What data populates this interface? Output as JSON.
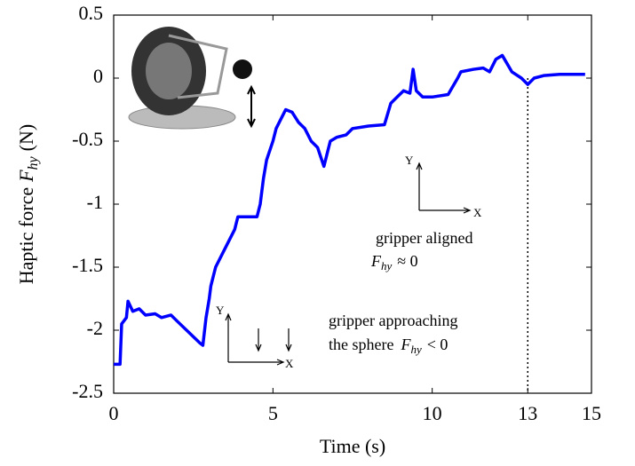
{
  "chart_data": {
    "type": "line",
    "xlabel": "Time (s)",
    "ylabel": {
      "text": "Haptic force",
      "symbol": "F",
      "subscript": "hy",
      "unit": "(N)"
    },
    "annotations": [
      {
        "line1": "gripper aligned",
        "symbol": "F",
        "subscript": "hy",
        "relation": "≈ 0"
      },
      {
        "line1": "gripper approaching",
        "line2": "the sphere",
        "symbol": "F",
        "subscript": "hy",
        "relation": "< 0"
      }
    ],
    "axis_labels": {
      "y": "Y",
      "x": "X"
    },
    "color": "#0000ff",
    "x": [
      0,
      0.2,
      0.25,
      0.4,
      0.45,
      0.6,
      0.8,
      1.0,
      1.3,
      1.5,
      1.8,
      2.0,
      2.7,
      2.8,
      2.9,
      3.0,
      3.05,
      3.1,
      3.2,
      3.5,
      3.8,
      3.9,
      4.5,
      4.6,
      4.7,
      4.8,
      5.0,
      5.1,
      5.3,
      5.4,
      5.6,
      5.8,
      6.0,
      6.2,
      6.4,
      6.6,
      6.7,
      6.8,
      7.0,
      7.3,
      7.5,
      8.0,
      8.5,
      8.7,
      8.9,
      9.1,
      9.3,
      9.4,
      9.5,
      9.7,
      10.0,
      10.5,
      10.8,
      10.9,
      11.3,
      11.6,
      11.8,
      12.0,
      12.2,
      12.5,
      12.8,
      13.0,
      13.2,
      13.5,
      14.0,
      14.5,
      14.8
    ],
    "values": [
      -2.27,
      -2.27,
      -1.95,
      -1.9,
      -1.77,
      -1.85,
      -1.83,
      -1.88,
      -1.87,
      -1.9,
      -1.88,
      -1.93,
      -2.1,
      -2.12,
      -1.9,
      -1.75,
      -1.65,
      -1.6,
      -1.5,
      -1.35,
      -1.2,
      -1.1,
      -1.1,
      -1.0,
      -0.8,
      -0.65,
      -0.5,
      -0.4,
      -0.3,
      -0.25,
      -0.27,
      -0.35,
      -0.4,
      -0.5,
      -0.55,
      -0.7,
      -0.6,
      -0.5,
      -0.47,
      -0.45,
      -0.4,
      -0.38,
      -0.37,
      -0.2,
      -0.15,
      -0.1,
      -0.12,
      0.07,
      -0.1,
      -0.15,
      -0.15,
      -0.13,
      0.0,
      0.05,
      0.07,
      0.08,
      0.05,
      0.15,
      0.18,
      0.05,
      0.0,
      -0.05,
      0.0,
      0.02,
      0.03,
      0.03,
      0.03
    ],
    "vline_x": 13,
    "xlim": [
      0,
      15
    ],
    "xticks": [
      0,
      5,
      10,
      13,
      15
    ],
    "ylim": [
      -2.5,
      0.5
    ],
    "yticks": [
      0.5,
      0,
      -0.5,
      -1,
      -1.5,
      -2,
      -2.5
    ]
  }
}
